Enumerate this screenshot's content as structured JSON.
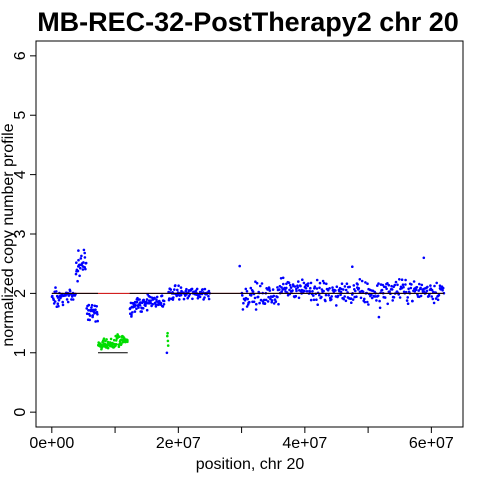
{
  "chart_data": {
    "type": "scatter",
    "title": "MB-REC-32-PostTherapy2 chr 20",
    "xlabel": "position, chr 20",
    "ylabel": "normalized copy number profile",
    "xlim": [
      -2500000,
      65000000
    ],
    "ylim": [
      -0.25,
      6.25
    ],
    "x_ticks": [
      {
        "value": 0,
        "label": "0e+00"
      },
      {
        "value": 10000000,
        "label": ""
      },
      {
        "value": 20000000,
        "label": "2e+07"
      },
      {
        "value": 30000000,
        "label": ""
      },
      {
        "value": 40000000,
        "label": "4e+07"
      },
      {
        "value": 50000000,
        "label": ""
      },
      {
        "value": 60000000,
        "label": "6e+07"
      }
    ],
    "y_ticks": [
      {
        "value": 0,
        "label": "0"
      },
      {
        "value": 1,
        "label": "1"
      },
      {
        "value": 2,
        "label": "2"
      },
      {
        "value": 3,
        "label": "3"
      },
      {
        "value": 4,
        "label": "4"
      },
      {
        "value": 5,
        "label": "5"
      },
      {
        "value": 6,
        "label": "6"
      }
    ],
    "grid": false,
    "colors": {
      "normal": "#0000ff",
      "loss": "#00dd00",
      "segment": "#000000",
      "reference": "#cc0000"
    },
    "reference_line": {
      "y": 2,
      "x": [
        0,
        62000000
      ]
    },
    "segments": [
      {
        "x": [
          0,
          7300000
        ],
        "y": 2.0
      },
      {
        "x": [
          7300000,
          12000000
        ],
        "y": 1.0
      },
      {
        "x": [
          12300000,
          62000000
        ],
        "y": 2.0
      }
    ],
    "series": [
      {
        "state": "normal",
        "clusters": [
          {
            "x": [
              0,
              2000000
            ],
            "y": 1.92,
            "sd": 0.08,
            "n": 25
          },
          {
            "x": [
              2000000,
              3800000
            ],
            "y": 1.97,
            "sd": 0.05,
            "n": 25
          },
          {
            "x": [
              3800000,
              4400000
            ],
            "y": 2.3,
            "sd": 0.15,
            "n": 12
          },
          {
            "x": [
              4400000,
              5500000
            ],
            "y": 2.55,
            "sd": 0.1,
            "n": 15
          },
          {
            "x": [
              5500000,
              7300000
            ],
            "y": 1.7,
            "sd": 0.1,
            "n": 28
          },
          {
            "x": [
              12300000,
              14300000
            ],
            "y": 1.78,
            "sd": 0.08,
            "n": 35
          },
          {
            "x": [
              14300000,
              17800000
            ],
            "y": 1.85,
            "sd": 0.06,
            "n": 50
          },
          {
            "x": [
              18400000,
              25000000
            ],
            "y": 2.0,
            "sd": 0.06,
            "n": 85
          },
          {
            "x": [
              30000000,
              36000000
            ],
            "y": 1.95,
            "sd": 0.1,
            "n": 70
          },
          {
            "x": [
              36000000,
              41000000
            ],
            "y": 2.1,
            "sd": 0.08,
            "n": 60
          },
          {
            "x": [
              41000000,
              52000000
            ],
            "y": 2.0,
            "sd": 0.1,
            "n": 120
          },
          {
            "x": [
              52000000,
              62000000
            ],
            "y": 2.05,
            "sd": 0.09,
            "n": 110
          }
        ],
        "points": [
          {
            "x": 4200000,
            "y": 2.72
          },
          {
            "x": 5200000,
            "y": 2.68
          },
          {
            "x": 29700000,
            "y": 2.46
          },
          {
            "x": 47500000,
            "y": 2.45
          },
          {
            "x": 58800000,
            "y": 2.6
          },
          {
            "x": 51700000,
            "y": 1.6
          },
          {
            "x": 18200000,
            "y": 1.0
          }
        ]
      },
      {
        "state": "loss",
        "clusters": [
          {
            "x": [
              7300000,
              10000000
            ],
            "y": 1.13,
            "sd": 0.04,
            "n": 60
          },
          {
            "x": [
              10000000,
              12000000
            ],
            "y": 1.22,
            "sd": 0.05,
            "n": 40
          }
        ],
        "points": [
          {
            "x": 18300000,
            "y": 1.33
          },
          {
            "x": 18250000,
            "y": 1.28
          },
          {
            "x": 18400000,
            "y": 1.12
          },
          {
            "x": 18350000,
            "y": 1.2
          }
        ]
      }
    ]
  }
}
